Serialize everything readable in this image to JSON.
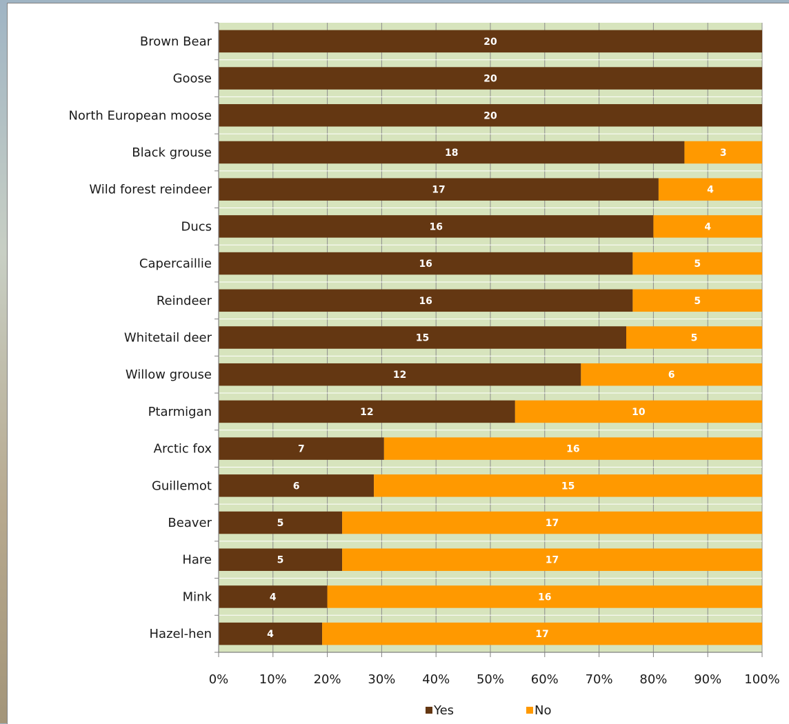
{
  "chart_data": {
    "type": "bar",
    "orientation": "horizontal",
    "stacking": "percent",
    "categories": [
      "Brown Bear",
      "Goose",
      "North European moose",
      "Black grouse",
      "Wild forest reindeer",
      "Ducs",
      "Capercaillie",
      "Reindeer",
      "Whitetail deer",
      "Willow grouse",
      "Ptarmigan",
      "Arctic fox",
      "Guillemot",
      "Beaver",
      "Hare",
      "Mink",
      "Hazel-hen"
    ],
    "series": [
      {
        "name": "Yes",
        "color": "#643712",
        "values": [
          20,
          20,
          20,
          18,
          17,
          16,
          16,
          16,
          15,
          12,
          12,
          7,
          6,
          5,
          5,
          4,
          4
        ]
      },
      {
        "name": "No",
        "color": "#ff9900",
        "values": [
          0,
          0,
          0,
          3,
          4,
          4,
          5,
          5,
          5,
          6,
          10,
          16,
          15,
          17,
          17,
          16,
          17
        ]
      }
    ],
    "x_ticks": [
      "0%",
      "10%",
      "20%",
      "30%",
      "40%",
      "50%",
      "60%",
      "70%",
      "80%",
      "90%",
      "100%"
    ],
    "xlim": [
      0,
      100
    ],
    "grid": true,
    "plot_background": "#d7e4bd",
    "legend_position": "bottom",
    "title": "",
    "xlabel": "",
    "ylabel": ""
  }
}
